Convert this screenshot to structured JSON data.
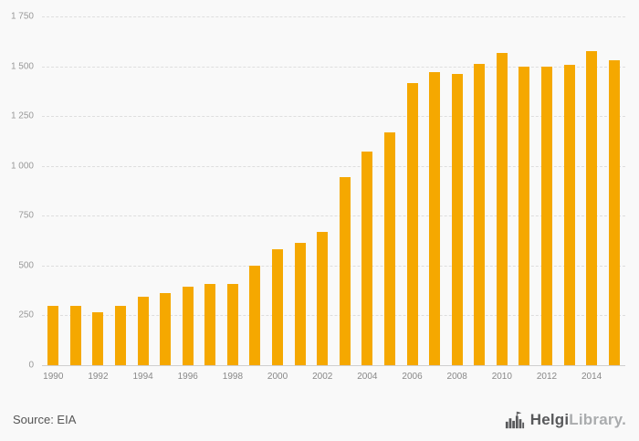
{
  "chart_data": {
    "type": "bar",
    "categories": [
      "1990",
      "1991",
      "1992",
      "1993",
      "1994",
      "1995",
      "1996",
      "1997",
      "1998",
      "1999",
      "2000",
      "2001",
      "2002",
      "2003",
      "2004",
      "2005",
      "2006",
      "2007",
      "2008",
      "2009",
      "2010",
      "2011",
      "2012",
      "2013",
      "2014",
      "2015"
    ],
    "values": [
      300,
      300,
      265,
      300,
      345,
      360,
      395,
      410,
      410,
      500,
      580,
      615,
      670,
      945,
      1070,
      1170,
      1415,
      1470,
      1460,
      1510,
      1565,
      1500,
      1500,
      1505,
      1575,
      1530
    ],
    "title": "",
    "xlabel": "",
    "ylabel": "",
    "ylim": [
      0,
      1750
    ],
    "ytick_step": 250,
    "ytick_labels": [
      "0",
      "250",
      "500",
      "750",
      "1 000",
      "1 250",
      "1 500",
      "1 750"
    ],
    "x_label_every": 2,
    "grid": true,
    "legend": "none",
    "bar_color": "#f5a800"
  },
  "footer": {
    "source_label": "Source: EIA",
    "brand_primary": "Helgi",
    "brand_secondary": "Library",
    "brand_suffix": ".",
    "brand_icon": "factory-logo-icon",
    "brand_color_primary": "#58595b",
    "brand_color_secondary": "#aaacae"
  }
}
